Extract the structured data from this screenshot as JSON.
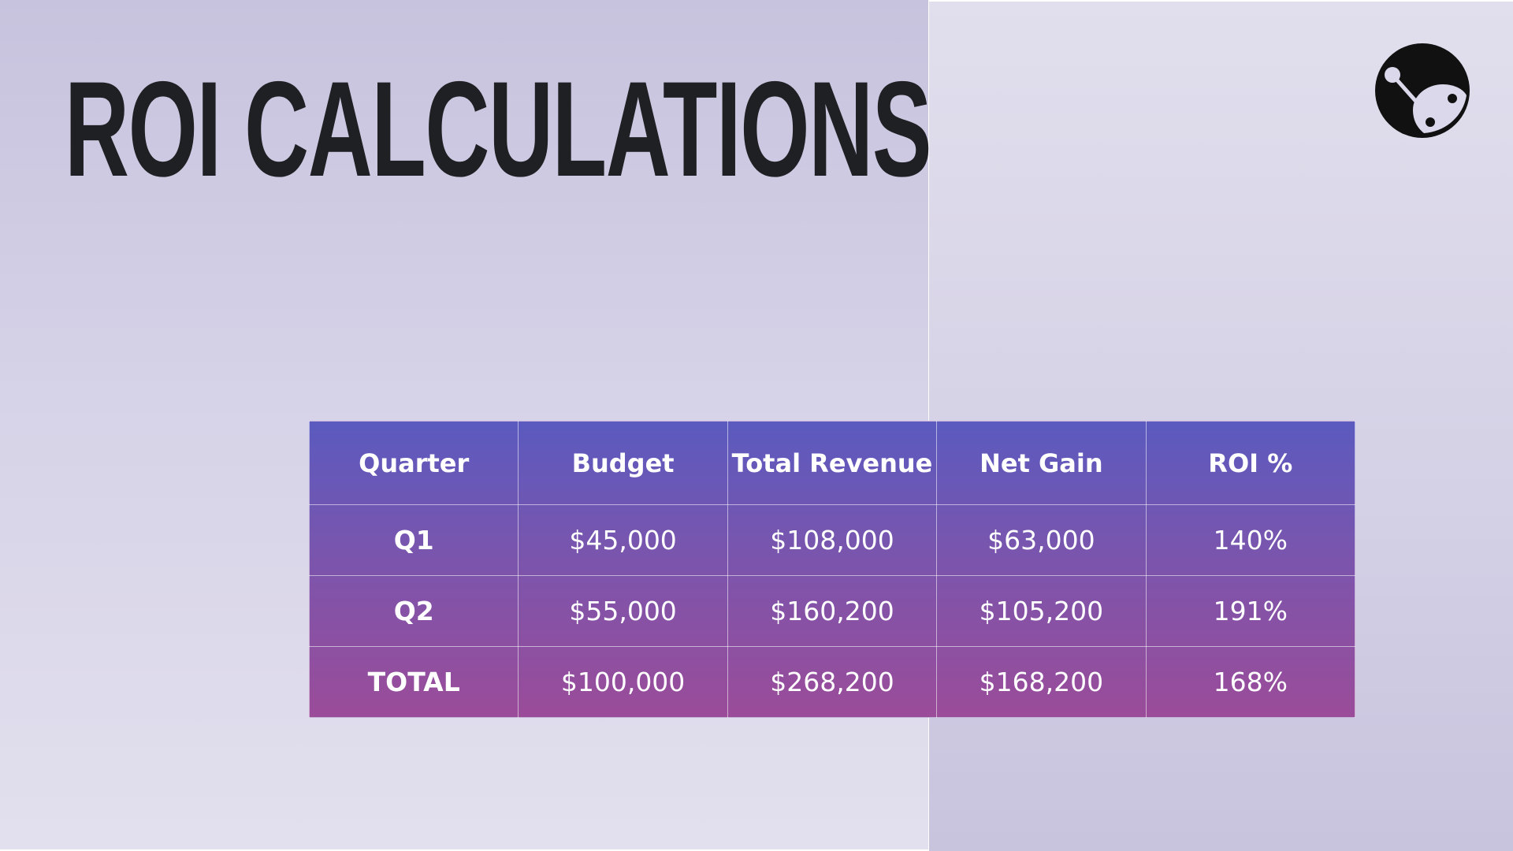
{
  "slide": {
    "title": "ROI CALCULATIONS"
  },
  "logo": {
    "icon": "rover-logo-icon"
  },
  "table": {
    "headers": [
      "Quarter",
      "Budget",
      "Total Revenue",
      "Net Gain",
      "ROI %"
    ],
    "rows": [
      [
        "Q1",
        "$45,000",
        "$108,000",
        "$63,000",
        "140%"
      ],
      [
        "Q2",
        "$55,000",
        "$160,200",
        "$105,200",
        "191%"
      ],
      [
        "TOTAL",
        "$100,000",
        "$268,200",
        "$168,200",
        "168%"
      ]
    ]
  },
  "colors": {
    "title": "#1f2024",
    "table_top": "#5b5abf",
    "table_bottom": "#9b4c99",
    "background_left": "#cfcbe3",
    "background_right": "#dcd9ea"
  }
}
